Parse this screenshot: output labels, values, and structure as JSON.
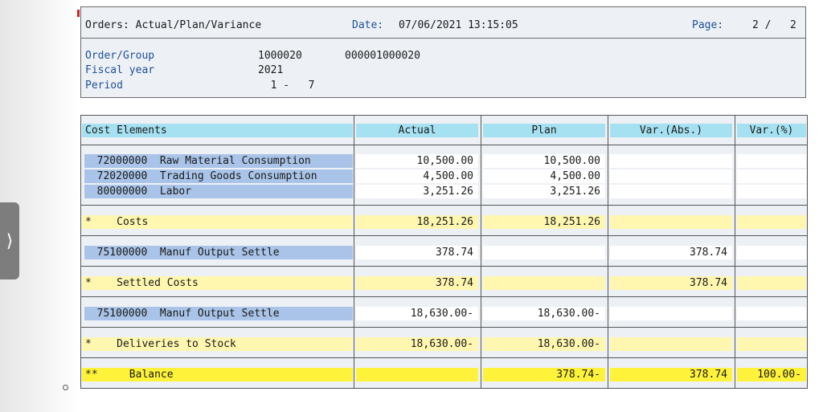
{
  "header": {
    "title": "Orders: Actual/Plan/Variance",
    "date_label": "Date:",
    "date_value": "07/06/2021 13:15:05",
    "page_label": "Page:",
    "page_value": "2 /   2",
    "fields": [
      {
        "label": "Order/Group",
        "value1": "1000020",
        "value2": "000001000020"
      },
      {
        "label": "Fiscal year",
        "value1": "2021",
        "value2": ""
      },
      {
        "label": "Period",
        "value1": "  1 -   7",
        "value2": ""
      }
    ]
  },
  "table": {
    "columns": [
      "Cost Elements",
      "Actual",
      "Plan",
      "Var.(Abs.)",
      "Var.(%)"
    ],
    "rows": [
      {
        "type": "ce",
        "element": "  72000000  Raw Material Consumption",
        "actual": "10,500.00",
        "plan": "10,500.00",
        "var_abs": "",
        "var_pct": ""
      },
      {
        "type": "ce",
        "element": "  72020000  Trading Goods Consumption",
        "actual": "4,500.00",
        "plan": "4,500.00",
        "var_abs": "",
        "var_pct": ""
      },
      {
        "type": "ce",
        "element": "  80000000  Labor",
        "actual": "3,251.26",
        "plan": "3,251.26",
        "var_abs": "",
        "var_pct": ""
      },
      {
        "type": "sum",
        "element": "*    Costs",
        "actual": "18,251.26",
        "plan": "18,251.26",
        "var_abs": "",
        "var_pct": ""
      },
      {
        "type": "ce",
        "element": "  75100000  Manuf Output Settle",
        "actual": "378.74",
        "plan": "",
        "var_abs": "378.74",
        "var_pct": ""
      },
      {
        "type": "sum",
        "element": "*    Settled Costs",
        "actual": "378.74",
        "plan": "",
        "var_abs": "378.74",
        "var_pct": ""
      },
      {
        "type": "ce",
        "element": "  75100000  Manuf Output Settle",
        "actual": "18,630.00-",
        "plan": "18,630.00-",
        "var_abs": "",
        "var_pct": ""
      },
      {
        "type": "sum",
        "element": "*    Deliveries to Stock",
        "actual": "18,630.00-",
        "plan": "18,630.00-",
        "var_abs": "",
        "var_pct": ""
      },
      {
        "type": "bal",
        "element": "**     Balance",
        "actual": "",
        "plan": "378.74-",
        "var_abs": "378.74",
        "var_pct": "100.00-"
      }
    ]
  },
  "ui": {
    "side_handle_icon": "chevron-right-icon",
    "side_handle_glyph": "⟩"
  }
}
